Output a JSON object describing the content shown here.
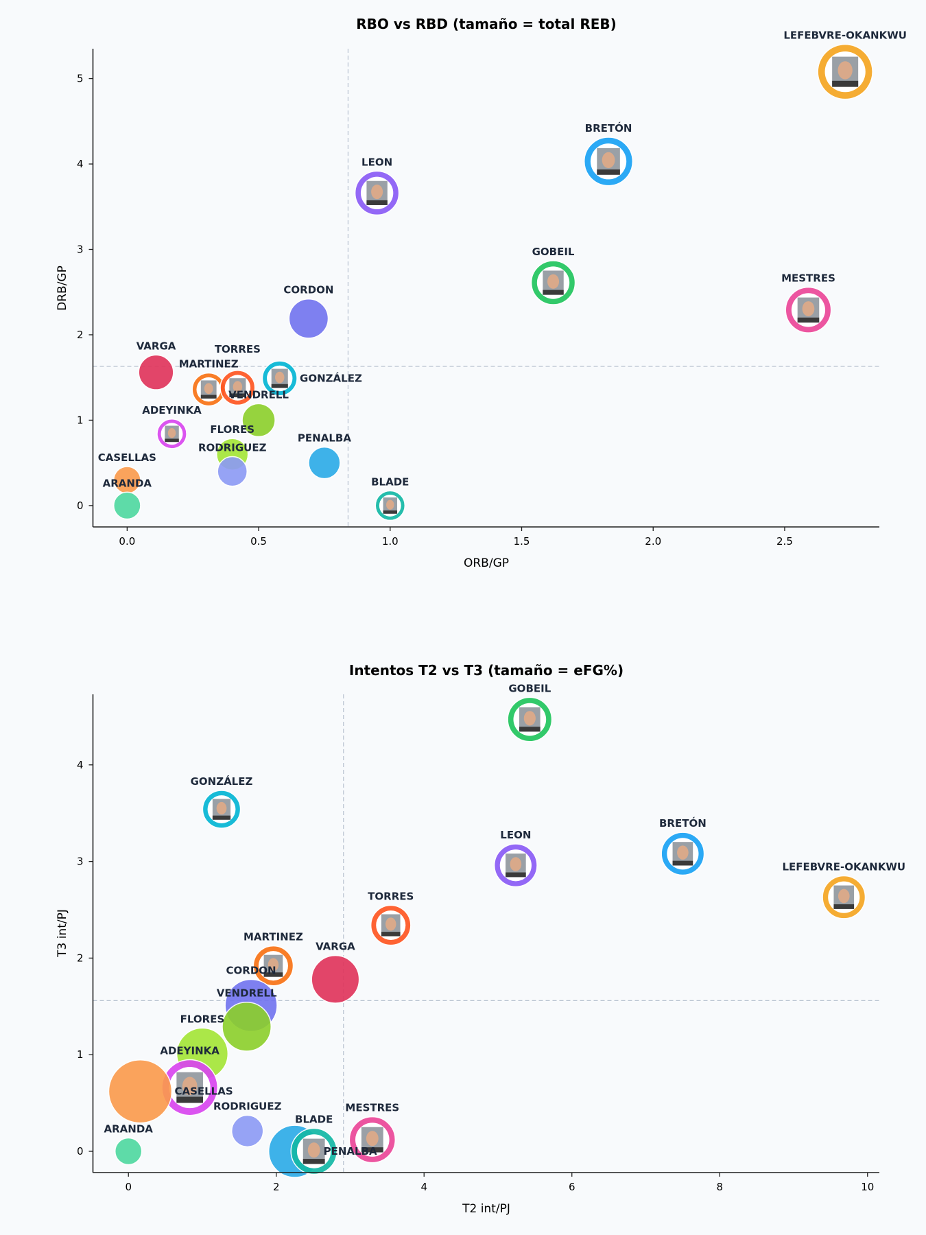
{
  "background": "#f8fafc",
  "chart_data": [
    {
      "type": "scatter",
      "title": "RBO vs RBD  (tamaño = total REB)",
      "xlabel": "ORB/GP",
      "ylabel": "DRB/GP",
      "xlim": [
        -0.13,
        2.86
      ],
      "ylim": [
        -0.25,
        5.35
      ],
      "xticks": [
        "0.0",
        "0.5",
        "1.0",
        "1.5",
        "2.0",
        "2.5"
      ],
      "yticks": [
        "0",
        "1",
        "2",
        "3",
        "4",
        "5"
      ],
      "reference_lines": {
        "x": 0.84,
        "y": 1.63
      },
      "grid": false,
      "points": [
        {
          "name": "LEFEBVRE-OKANKWU",
          "x": 2.73,
          "y": 5.08,
          "size": 1.0,
          "color": "#f5a623",
          "photo": true
        },
        {
          "name": "BRETÓN",
          "x": 1.83,
          "y": 4.03,
          "size": 0.78,
          "color": "#1aa3f5",
          "photo": true
        },
        {
          "name": "LEON",
          "x": 0.95,
          "y": 3.66,
          "size": 0.64,
          "color": "#8b5cf6",
          "photo": true
        },
        {
          "name": "GOBEIL",
          "x": 1.62,
          "y": 2.61,
          "size": 0.64,
          "color": "#22c55e",
          "photo": true
        },
        {
          "name": "MESTRES",
          "x": 2.59,
          "y": 2.29,
          "size": 0.69,
          "color": "#ec4899",
          "photo": true
        },
        {
          "name": "CORDON",
          "x": 0.69,
          "y": 2.19,
          "size": 0.51,
          "color": "#7173ef",
          "photo": false
        },
        {
          "name": "VARGA",
          "x": 0.11,
          "y": 1.56,
          "size": 0.4,
          "color": "#e0325a",
          "photo": false
        },
        {
          "name": "MARTINEZ",
          "x": 0.31,
          "y": 1.36,
          "size": 0.36,
          "color": "#f97316",
          "photo": true
        },
        {
          "name": "TORRES",
          "x": 0.42,
          "y": 1.38,
          "size": 0.4,
          "color": "#ff5722",
          "photo": true
        },
        {
          "name": "GONZÁLEZ",
          "x": 0.58,
          "y": 1.49,
          "size": 0.4,
          "color": "#06b6d4",
          "photo": true
        },
        {
          "name": "VENDRELL",
          "x": 0.5,
          "y": 1.0,
          "size": 0.36,
          "color": "#8ccf2a",
          "photo": false
        },
        {
          "name": "ADEYINKA",
          "x": 0.17,
          "y": 0.84,
          "size": 0.29,
          "color": "#d946ef",
          "photo": true
        },
        {
          "name": "FLORES",
          "x": 0.4,
          "y": 0.6,
          "size": 0.33,
          "color": "#a3e635",
          "photo": false
        },
        {
          "name": "RODRIGUEZ",
          "x": 0.4,
          "y": 0.4,
          "size": 0.29,
          "color": "#8c9af5",
          "photo": false
        },
        {
          "name": "PENALBA",
          "x": 0.75,
          "y": 0.5,
          "size": 0.33,
          "color": "#2aabe8",
          "photo": false
        },
        {
          "name": "CASELLAS",
          "x": 0.0,
          "y": 0.3,
          "size": 0.24,
          "color": "#fb9a4b",
          "photo": false
        },
        {
          "name": "ARANDA",
          "x": 0.0,
          "y": 0.0,
          "size": 0.24,
          "color": "#4ed8a0",
          "photo": false
        },
        {
          "name": "BLADE",
          "x": 1.0,
          "y": 0.0,
          "size": 0.29,
          "color": "#14b8a6",
          "photo": true
        }
      ]
    },
    {
      "type": "scatter",
      "title": "Intentos T2 vs T3  (tamaño = eFG%)",
      "xlabel": "T2 int/PJ",
      "ylabel": "T3 int/PJ",
      "xlim": [
        -0.48,
        10.16
      ],
      "ylim": [
        -0.22,
        4.73
      ],
      "xticks": [
        "0",
        "2",
        "4",
        "6",
        "8",
        "10"
      ],
      "yticks": [
        "0",
        "1",
        "2",
        "3",
        "4"
      ],
      "reference_lines": {
        "x": 2.91,
        "y": 1.56
      },
      "grid": false,
      "points": [
        {
          "name": "GOBEIL",
          "x": 5.43,
          "y": 4.47,
          "size": 0.49,
          "color": "#22c55e",
          "photo": true
        },
        {
          "name": "GONZÁLEZ",
          "x": 1.26,
          "y": 3.54,
          "size": 0.36,
          "color": "#06b6d4",
          "photo": true
        },
        {
          "name": "LEON",
          "x": 5.24,
          "y": 2.96,
          "size": 0.46,
          "color": "#8b5cf6",
          "photo": true
        },
        {
          "name": "BRETÓN",
          "x": 7.5,
          "y": 3.08,
          "size": 0.46,
          "color": "#1aa3f5",
          "photo": true
        },
        {
          "name": "LEFEBVRE-OKANKWU",
          "x": 9.68,
          "y": 2.63,
          "size": 0.46,
          "color": "#f5a623",
          "photo": true
        },
        {
          "name": "TORRES",
          "x": 3.55,
          "y": 2.34,
          "size": 0.4,
          "color": "#ff5722",
          "photo": true
        },
        {
          "name": "MARTINEZ",
          "x": 1.96,
          "y": 1.92,
          "size": 0.4,
          "color": "#f97316",
          "photo": true
        },
        {
          "name": "VARGA",
          "x": 2.8,
          "y": 1.78,
          "size": 0.57,
          "color": "#e0325a",
          "photo": false
        },
        {
          "name": "CORDON",
          "x": 1.66,
          "y": 1.51,
          "size": 0.68,
          "color": "#7173ef",
          "photo": false
        },
        {
          "name": "VENDRELL",
          "x": 1.6,
          "y": 1.29,
          "size": 0.6,
          "color": "#8ccf2a",
          "photo": false
        },
        {
          "name": "FLORES",
          "x": 1.0,
          "y": 1.01,
          "size": 0.66,
          "color": "#a3e635",
          "photo": false
        },
        {
          "name": "ADEYINKA",
          "x": 0.83,
          "y": 0.66,
          "size": 0.78,
          "color": "#d946ef",
          "photo": true
        },
        {
          "name": "CASELLAS",
          "x": 0.16,
          "y": 0.62,
          "size": 1.0,
          "color": "#fb9a4b",
          "photo": false
        },
        {
          "name": "RODRIGUEZ",
          "x": 1.61,
          "y": 0.21,
          "size": 0.25,
          "color": "#8c9af5",
          "photo": false
        },
        {
          "name": "PENALBA",
          "x": 2.25,
          "y": 0.0,
          "size": 0.68,
          "color": "#2aabe8",
          "photo": false
        },
        {
          "name": "BLADE",
          "x": 2.51,
          "y": 0.0,
          "size": 0.53,
          "color": "#14b8a6",
          "photo": true
        },
        {
          "name": "MESTRES",
          "x": 3.3,
          "y": 0.12,
          "size": 0.53,
          "color": "#ec4899",
          "photo": true
        },
        {
          "name": "ARANDA",
          "x": 0.0,
          "y": 0.0,
          "size": 0.18,
          "color": "#4ed8a0",
          "photo": false
        }
      ]
    }
  ]
}
